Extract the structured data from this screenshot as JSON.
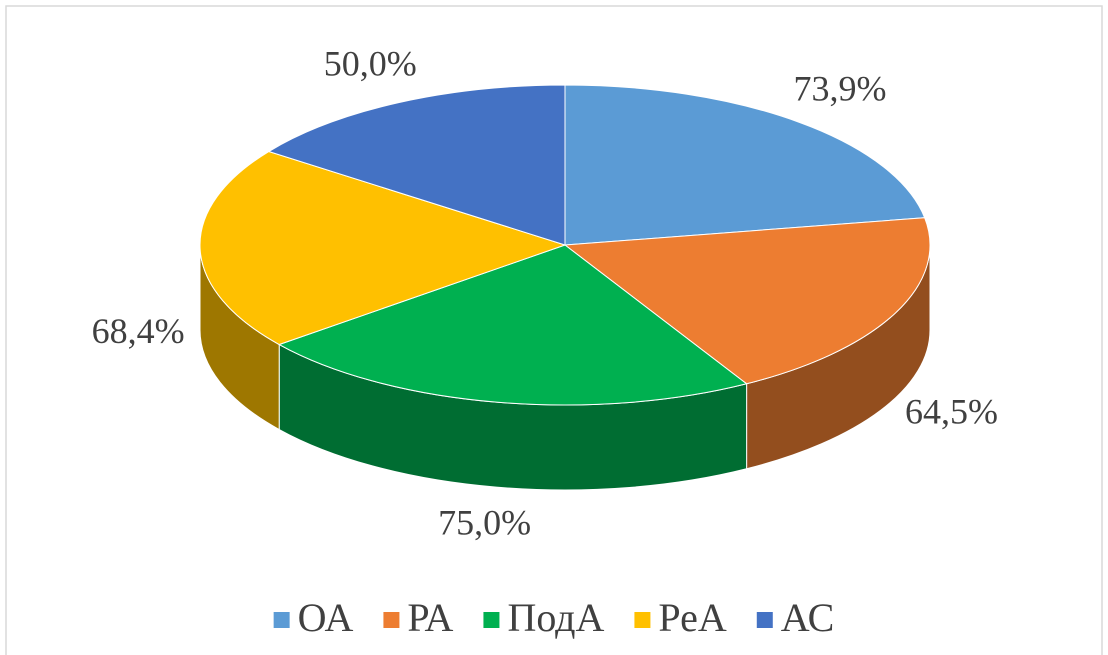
{
  "chart_data": {
    "type": "pie3d",
    "categories": [
      "ОА",
      "РА",
      "ПодА",
      "РеА",
      "АС"
    ],
    "values": [
      73.9,
      64.5,
      75.0,
      68.4,
      50.0
    ],
    "value_labels": [
      "73,9%",
      "64,5%",
      "75,0%",
      "68,4%",
      "50,0%"
    ],
    "colors": [
      "#5b9bd5",
      "#ed7d31",
      "#00b050",
      "#ffc000",
      "#4472c4"
    ],
    "legend": "bottom"
  }
}
